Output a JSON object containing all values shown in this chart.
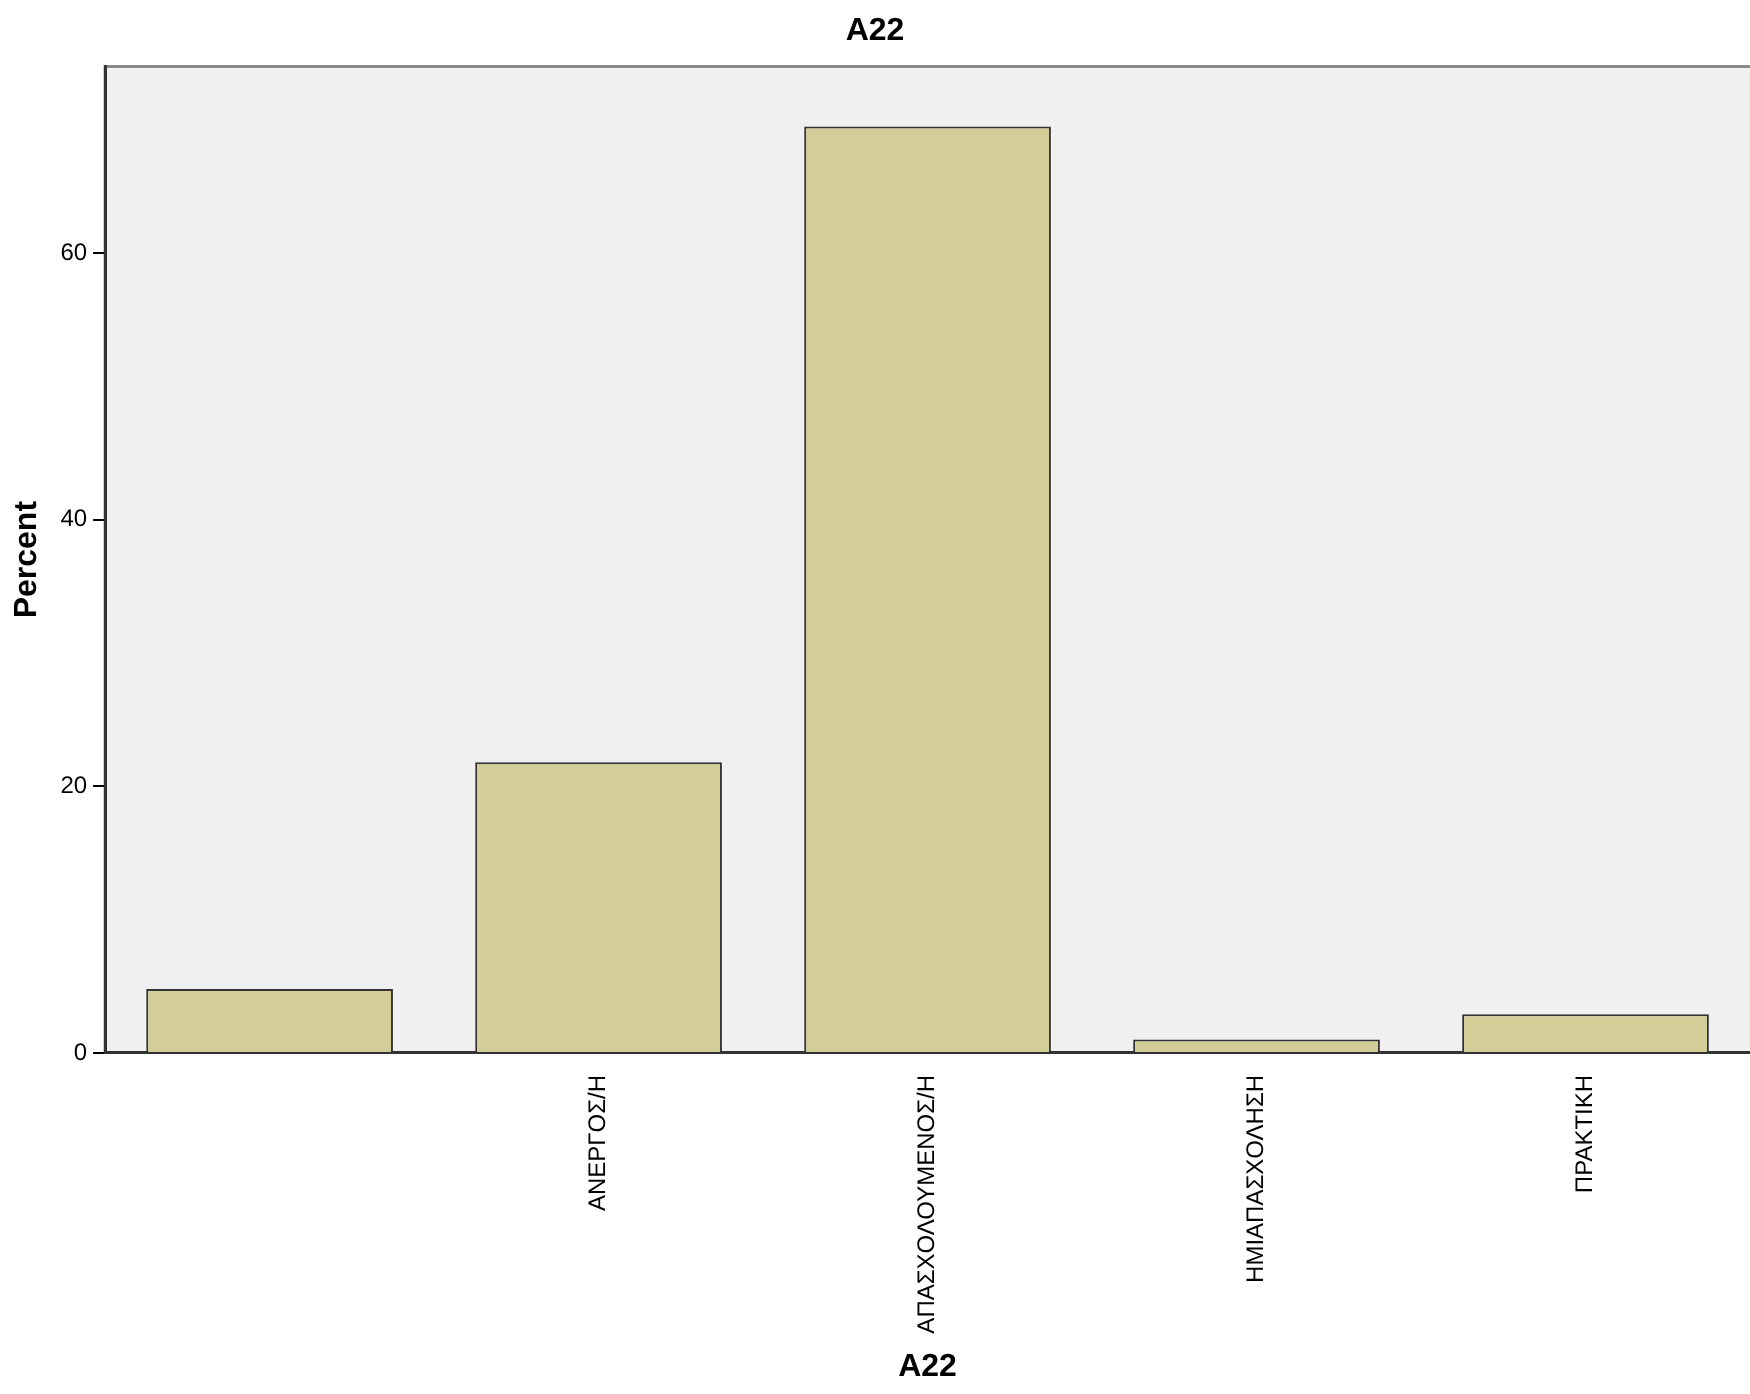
{
  "chart_data": {
    "type": "bar",
    "title": "A22",
    "xlabel": "A22",
    "ylabel": "Percent",
    "categories": [
      null,
      "ΑΝΕΡΓΟΣ/Η",
      "ΑΠΑΣΧΟΛΟΥΜΕΝΟΣ/Η",
      "ΗΜΙΑΠΑΣΧΟΛΗΣΗ",
      "ΠΡΑΚΤΙΚΗ"
    ],
    "values": [
      4.8,
      21.8,
      69.5,
      1.0,
      2.9
    ],
    "color": "#d3ce97",
    "ylim": [
      0,
      74
    ],
    "yticks": [
      0,
      20,
      40,
      60
    ],
    "grid": false,
    "legend": false
  }
}
